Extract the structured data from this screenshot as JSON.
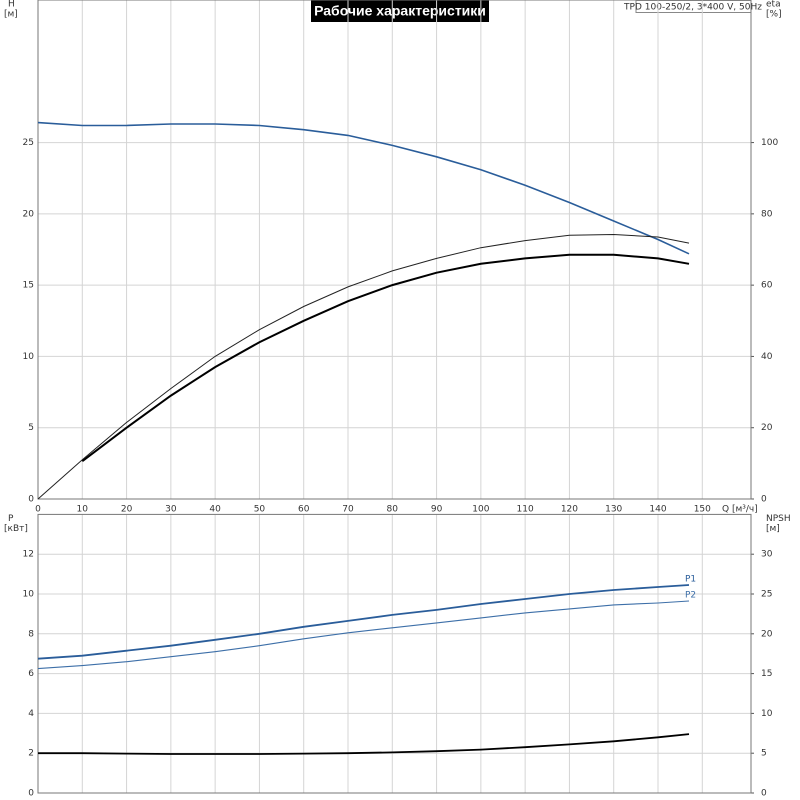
{
  "chart_data": [
    {
      "type": "line",
      "title": "Рабочие характеристики",
      "subtitle": "TPD 100-250/2, 3*400 V, 50Hz",
      "ylabel": "H",
      "yunit": "[м]",
      "y2label": "eta",
      "y2unit": "[%]",
      "xlabel": "Q [м³/ч]",
      "x": [
        0,
        10,
        20,
        30,
        40,
        50,
        60,
        70,
        80,
        90,
        100,
        110,
        120,
        130,
        140,
        147
      ],
      "xlim": [
        0,
        161
      ],
      "xticks": [
        0,
        10,
        20,
        30,
        40,
        50,
        60,
        70,
        80,
        90,
        100,
        110,
        120,
        130,
        140,
        150
      ],
      "ylim": [
        0,
        35
      ],
      "yticks": [
        0,
        5,
        10,
        15,
        20,
        25
      ],
      "y2lim": [
        0,
        140
      ],
      "y2ticks": [
        0,
        20,
        40,
        60,
        80,
        100
      ],
      "grid": true,
      "series": [
        {
          "color": "#2a5d9a",
          "width": 1.6,
          "values": [
            26.4,
            26.2,
            26.2,
            26.3,
            26.3,
            26.2,
            25.9,
            25.5,
            24.8,
            24.0,
            23.1,
            22.0,
            20.8,
            19.5,
            18.2,
            17.2
          ]
        },
        {
          "color": "#222222",
          "width": 1,
          "axis": "y2",
          "values": [
            0,
            11,
            21.5,
            31,
            40,
            47.5,
            54,
            59.5,
            64,
            67.5,
            70.5,
            72.5,
            74,
            74.2,
            73.5,
            71.8
          ]
        },
        {
          "color": "#000000",
          "width": 2,
          "axis": "y2",
          "values": [
            null,
            10.6,
            20,
            29,
            37,
            44,
            50,
            55.5,
            60,
            63.5,
            66,
            67.5,
            68.5,
            68.5,
            67.5,
            66
          ]
        }
      ]
    },
    {
      "type": "line",
      "ylabel": "P",
      "yunit": "[кВт]",
      "y2label": "NPSH",
      "y2unit": "[м]",
      "x": [
        0,
        10,
        20,
        30,
        40,
        50,
        60,
        70,
        80,
        90,
        100,
        110,
        120,
        130,
        140,
        147
      ],
      "xlim": [
        0,
        161
      ],
      "xticks": [
        0,
        10,
        20,
        30,
        40,
        50,
        60,
        70,
        80,
        90,
        100,
        110,
        120,
        130,
        140,
        150
      ],
      "ylim": [
        0,
        14
      ],
      "yticks": [
        0,
        2,
        4,
        6,
        8,
        10,
        12
      ],
      "y2lim": [
        0,
        35
      ],
      "y2ticks": [
        0,
        5,
        10,
        15,
        20,
        25,
        30
      ],
      "grid": true,
      "series": [
        {
          "name": "P1",
          "color": "#2a5d9a",
          "width": 1.8,
          "values": [
            6.75,
            6.9,
            7.15,
            7.4,
            7.7,
            8.0,
            8.35,
            8.65,
            8.95,
            9.2,
            9.5,
            9.75,
            10.0,
            10.2,
            10.35,
            10.45
          ]
        },
        {
          "name": "P2",
          "color": "#3d6fa8",
          "width": 1.1,
          "values": [
            6.25,
            6.4,
            6.6,
            6.85,
            7.1,
            7.4,
            7.75,
            8.05,
            8.3,
            8.55,
            8.8,
            9.05,
            9.25,
            9.45,
            9.55,
            9.65
          ]
        },
        {
          "color": "#000000",
          "width": 1.8,
          "axis": "y2",
          "values": [
            5.0,
            5.0,
            4.95,
            4.9,
            4.9,
            4.9,
            4.95,
            5.0,
            5.1,
            5.25,
            5.45,
            5.75,
            6.1,
            6.5,
            7.0,
            7.4
          ]
        }
      ]
    }
  ]
}
